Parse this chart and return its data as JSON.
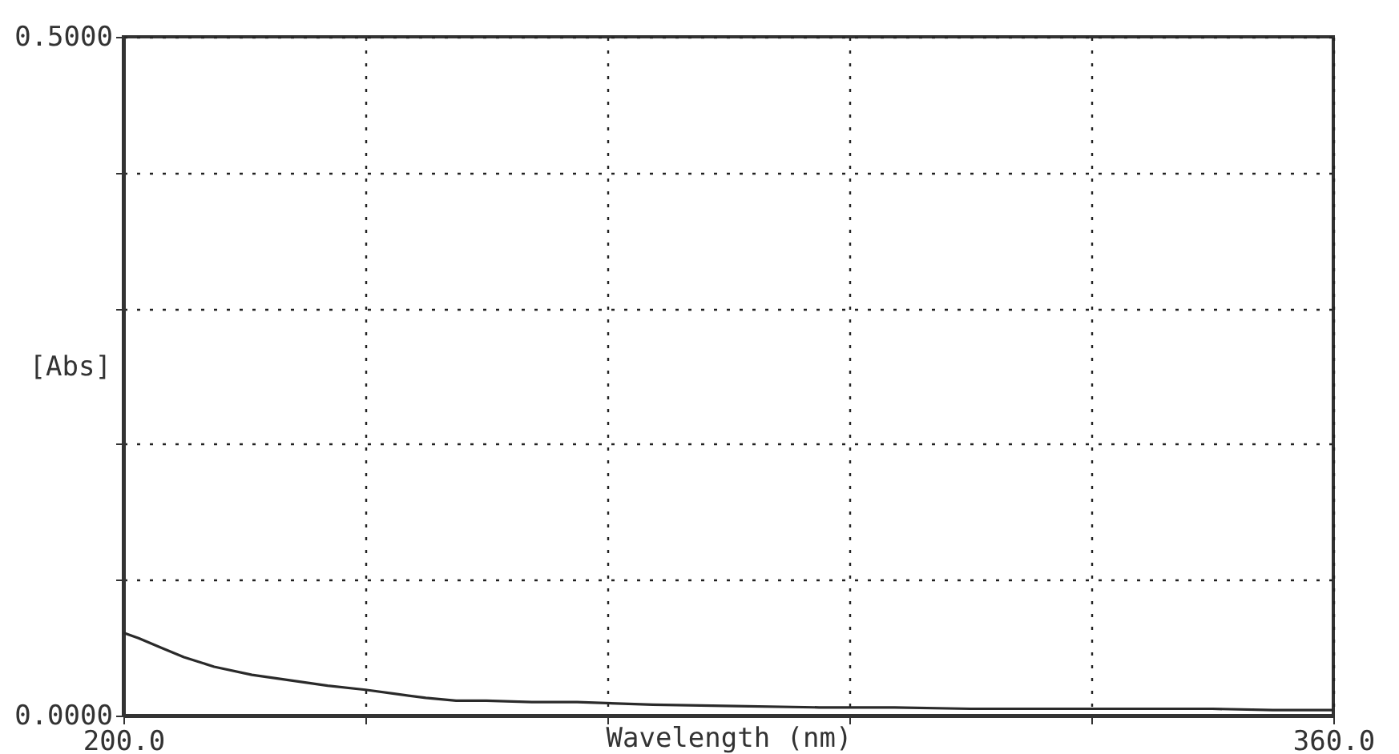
{
  "chart_data": {
    "type": "line",
    "xlabel": "Wavelength (nm)",
    "ylabel": "[Abs]",
    "x": [
      200,
      202,
      205,
      208,
      212,
      217,
      222,
      227,
      232,
      236,
      240,
      244,
      248,
      254,
      260,
      270,
      281,
      292,
      302,
      312,
      323,
      333,
      344,
      352,
      360
    ],
    "series": [
      {
        "color": "#2a2a2a",
        "values": [
          0.061,
          0.057,
          0.05,
          0.043,
          0.036,
          0.03,
          0.026,
          0.022,
          0.019,
          0.016,
          0.013,
          0.011,
          0.011,
          0.01,
          0.01,
          0.008,
          0.007,
          0.006,
          0.006,
          0.005,
          0.005,
          0.005,
          0.005,
          0.004,
          0.004
        ]
      }
    ],
    "xlim": [
      200,
      360
    ],
    "ylim": [
      0,
      0.5
    ],
    "xticks": [
      {
        "value": 200,
        "label": "200.0"
      },
      {
        "value": 232,
        "label": null
      },
      {
        "value": 264,
        "label": null
      },
      {
        "value": 296,
        "label": null
      },
      {
        "value": 328,
        "label": null
      },
      {
        "value": 360,
        "label": "360.0"
      }
    ],
    "yticks": [
      {
        "value": 0,
        "label": "0.0000"
      },
      {
        "value": 0.1,
        "label": null
      },
      {
        "value": 0.2,
        "label": null
      },
      {
        "value": 0.3,
        "label": null
      },
      {
        "value": 0.4,
        "label": null
      },
      {
        "value": 0.5,
        "label": "0.5000"
      }
    ],
    "grid": true,
    "line_style": "solid"
  }
}
